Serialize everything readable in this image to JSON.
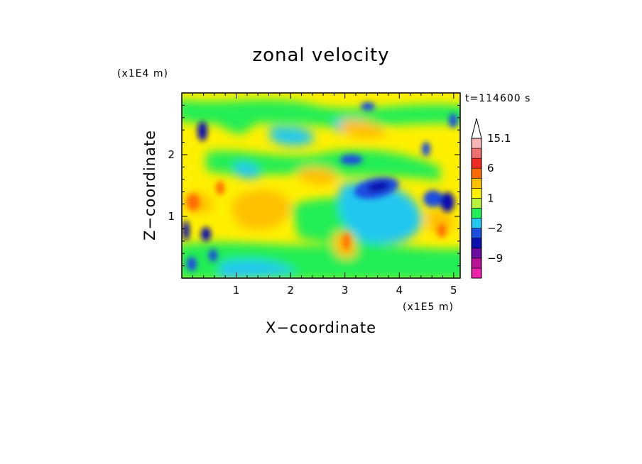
{
  "chart_data": {
    "type": "heatmap",
    "title": "zonal velocity",
    "xlabel": "X−coordinate",
    "ylabel": "Z−coordinate",
    "x_unit_label": "(x1E5 m)",
    "y_unit_label": "(x1E4 m)",
    "time_label": "t=114600 s",
    "xlim": [
      0,
      5.12
    ],
    "ylim": [
      0,
      3.0
    ],
    "x_ticks": [
      1,
      2,
      3,
      4,
      5
    ],
    "x_tick_labels": [
      "1",
      "2",
      "3",
      "4",
      "5"
    ],
    "y_ticks": [
      1,
      2
    ],
    "y_tick_labels": [
      "1",
      "2"
    ],
    "colorbar": {
      "levels": [
        -15,
        -12,
        -9,
        -6,
        -4,
        -2,
        -1,
        0,
        1,
        2,
        4,
        6,
        9,
        12,
        15.1
      ],
      "labeled_levels": [
        15.1,
        6,
        1,
        -2,
        -9
      ],
      "labels": [
        "15.1",
        "6",
        "1",
        "−2",
        "−9"
      ],
      "colors_low_to_high": [
        "#ee22aa",
        "#bb1199",
        "#6a0aa0",
        "#0a10b0",
        "#1a4ee0",
        "#22c8f0",
        "#22ee55",
        "#b8f23a",
        "#fff000",
        "#ffc000",
        "#ff6a00",
        "#ee2a22",
        "#f07070",
        "#f8b4b4"
      ],
      "extend_max": true
    },
    "grid": false
  }
}
